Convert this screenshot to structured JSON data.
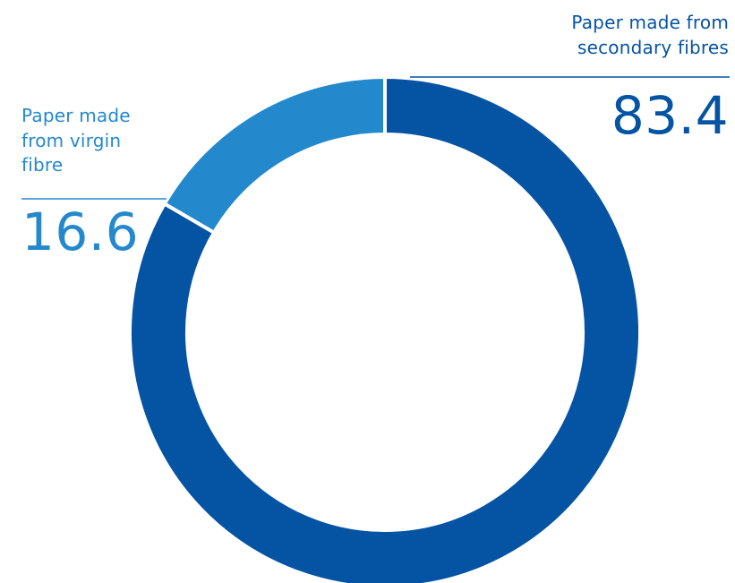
{
  "chart_data": {
    "type": "pie",
    "donut": true,
    "slices": [
      {
        "label_lines": [
          "Paper made from",
          "secondary fibres"
        ],
        "value": 83.4,
        "value_label": "83.4",
        "color": "#0553a3"
      },
      {
        "label_lines": [
          "Paper made",
          "from virgin",
          "fibre"
        ],
        "value": 16.6,
        "value_label": "16.6",
        "color": "#2489cc"
      }
    ],
    "start": "12 o'clock",
    "direction": "clockwise",
    "separator_color": "#ffffff"
  }
}
